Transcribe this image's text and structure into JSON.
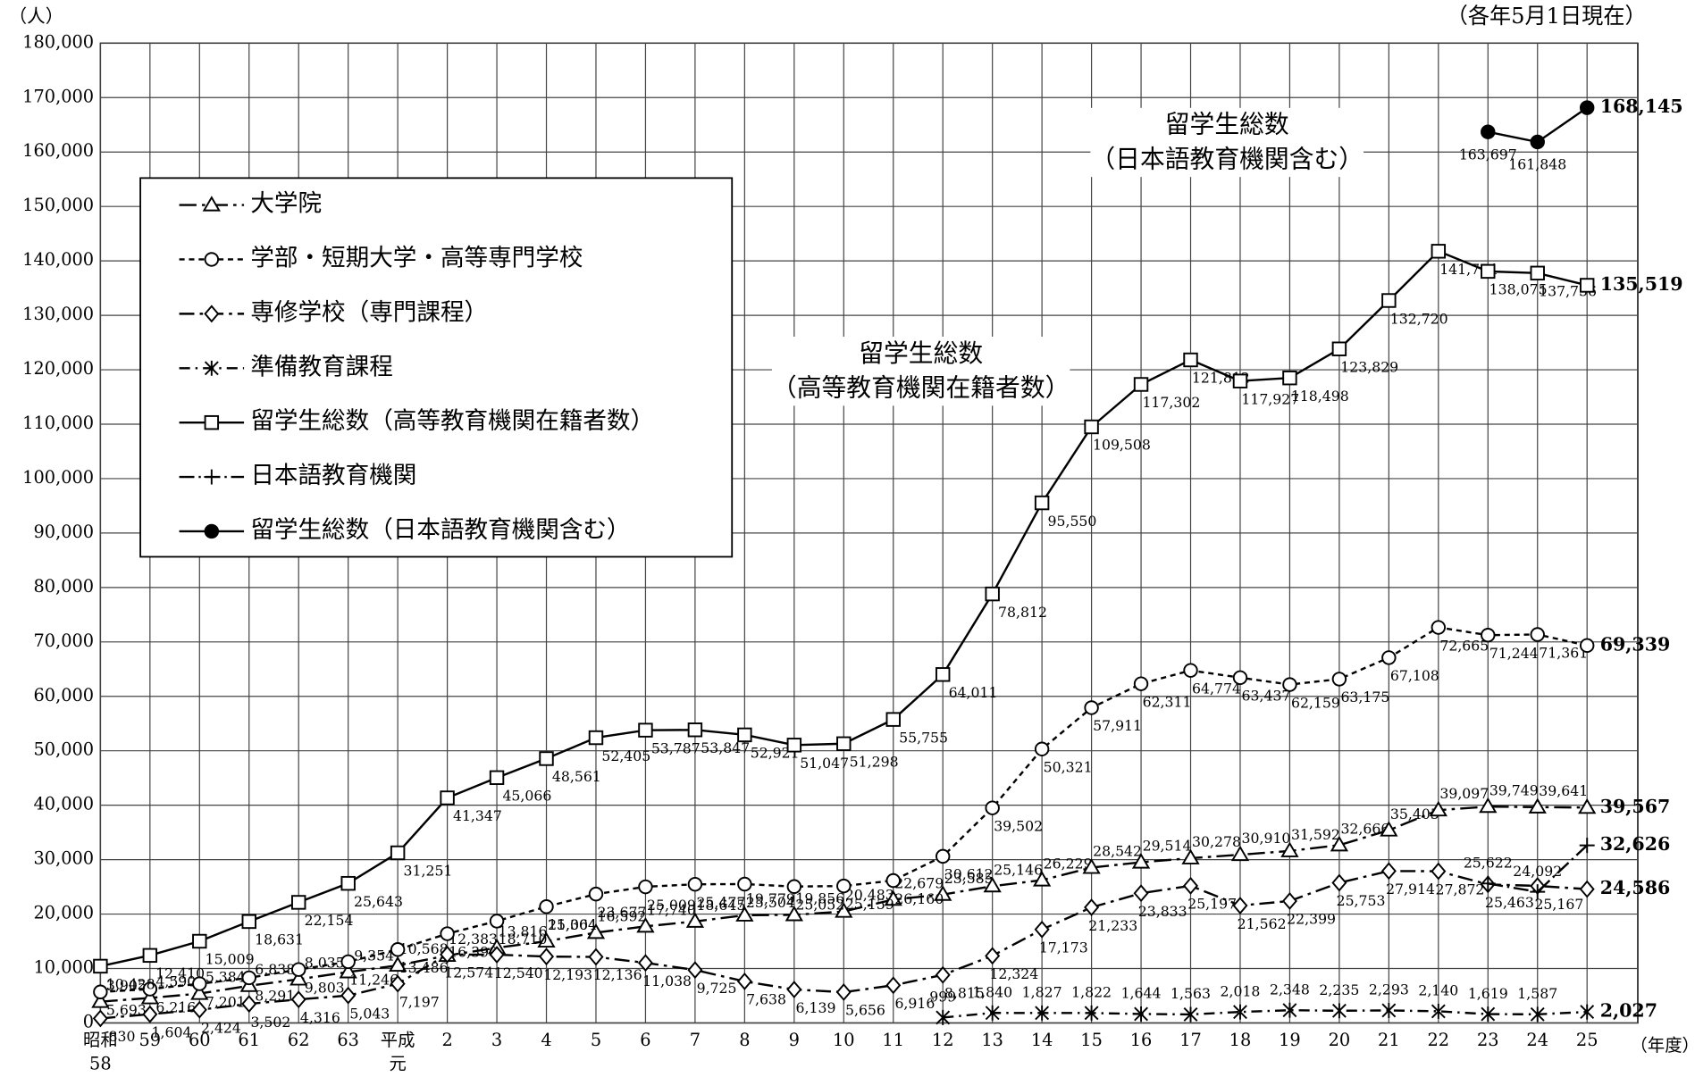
{
  "chart_data": {
    "type": "line",
    "subtitle": "（各年5月1日現在）",
    "ylabel": "（人）",
    "xlabel": "（年度）",
    "categories": [
      "昭和\n58",
      "59",
      "60",
      "61",
      "62",
      "63",
      "平成\n元",
      "2",
      "3",
      "4",
      "5",
      "6",
      "7",
      "8",
      "9",
      "10",
      "11",
      "12",
      "13",
      "14",
      "15",
      "16",
      "17",
      "18",
      "19",
      "20",
      "21",
      "22",
      "23",
      "24",
      "25"
    ],
    "ylim": [
      0,
      180000
    ],
    "yticks": [
      0,
      {
        "value": 10000,
        "label": "10,000"
      },
      {
        "value": 20000,
        "label": "20,000"
      },
      {
        "value": 30000,
        "label": "30,000"
      },
      {
        "value": 40000,
        "label": "40,000"
      },
      {
        "value": 50000,
        "label": "50,000"
      },
      {
        "value": 60000,
        "label": "60,000"
      },
      {
        "value": 70000,
        "label": "70,000"
      },
      {
        "value": 80000,
        "label": "80,000"
      },
      {
        "value": 90000,
        "label": "90,000"
      },
      {
        "value": 100000,
        "label": "100,000"
      },
      {
        "value": 110000,
        "label": "110,000"
      },
      {
        "value": 120000,
        "label": "120,000"
      },
      {
        "value": 130000,
        "label": "130,000"
      },
      {
        "value": 140000,
        "label": "140,000"
      },
      {
        "value": 150000,
        "label": "150,000"
      },
      {
        "value": 160000,
        "label": "160,000"
      },
      {
        "value": 170000,
        "label": "170,000"
      },
      {
        "value": 180000,
        "label": "180,000"
      }
    ],
    "grid": true,
    "legend": "upper left",
    "annotations": [
      "留学生総数\n（日本語教育機関含む）",
      "留学生総数\n（高等教育機関在籍者数）"
    ],
    "series": [
      {
        "name": "大学院",
        "color": "#000000",
        "marker": "triangle",
        "dash": "16,5,3,5",
        "values": [
          3905,
          4590,
          5384,
          6838,
          8035,
          9354,
          10568,
          12383,
          13816,
          15004,
          16592,
          17740,
          18645,
          19779,
          19856,
          20483,
          22679,
          23585,
          25146,
          26229,
          28542,
          29514,
          30278,
          30910,
          31592,
          32666,
          35405,
          39097,
          39749,
          39641,
          39567
        ],
        "value_labels": [
          "3,905",
          "4,590",
          "5,384",
          "6,838",
          "8,035",
          "9,354",
          "10,568",
          "12,383",
          "13,816",
          "15,004",
          "16,592",
          "17,740",
          "18,645",
          "19,779",
          "19,856",
          "20,483",
          "22,679",
          "23,585",
          "25,146",
          "26,229",
          "28,542",
          "29,514",
          "30,278",
          "30,910",
          "31,592",
          "32,666",
          "35,405",
          "39,097",
          "39,749",
          "39,641",
          "39,567"
        ]
      },
      {
        "name": "学部・短期大学・高等専門学校",
        "color": "#000000",
        "marker": "circle",
        "dash": "5,4",
        "values": [
          5693,
          6216,
          7201,
          8291,
          9803,
          11246,
          13486,
          16390,
          18710,
          21364,
          23677,
          25009,
          25477,
          25504,
          25052,
          25159,
          26160,
          30612,
          39502,
          50321,
          57911,
          62311,
          64774,
          63437,
          62159,
          63175,
          67108,
          72665,
          71244,
          71361,
          69339
        ],
        "value_labels": [
          "5,693",
          "6,216",
          "7,201",
          "8,291",
          "9,803",
          "11,246",
          "13,486",
          "16,390",
          "18,710",
          "21,364",
          "23,677",
          "25,009",
          "25,477",
          "25,504",
          "25,052",
          "25,159",
          "26,160",
          "30,612",
          "39,502",
          "50,321",
          "57,911",
          "62,311",
          "64,774",
          "63,437",
          "62,159",
          "63,175",
          "67,108",
          "72,665",
          "71,244",
          "71,361",
          "69,339"
        ]
      },
      {
        "name": "専修学校（専門課程）",
        "color": "#000000",
        "marker": "diamond",
        "dash": "14,5,3,5",
        "values": [
          830,
          1604,
          2424,
          3502,
          4316,
          5043,
          7197,
          12574,
          12540,
          12193,
          12136,
          11038,
          9725,
          7638,
          6139,
          5656,
          6916,
          8815,
          12324,
          17173,
          21233,
          23833,
          25197,
          21562,
          22399,
          25753,
          27914,
          27872,
          25463,
          25167,
          24586
        ],
        "value_labels": [
          "830",
          "1,604",
          "2,424",
          "3,502",
          "4,316",
          "5,043",
          "7,197",
          "12,574",
          "12,540",
          "12,193",
          "12,136",
          "11,038",
          "9,725",
          "7,638",
          "6,139",
          "5,656",
          "6,916",
          "8,815",
          "12,324",
          "17,173",
          "21,233",
          "23,833",
          "25,197",
          "21,562",
          "22,399",
          "25,753",
          "27,914",
          "27,872",
          "25,463",
          "25,167",
          "24,586"
        ]
      },
      {
        "name": "準備教育課程",
        "color": "#000000",
        "marker": "x",
        "dash": "10,5,2,5",
        "values": [
          null,
          null,
          null,
          null,
          null,
          null,
          null,
          null,
          null,
          null,
          null,
          null,
          null,
          null,
          null,
          null,
          null,
          999,
          1840,
          1827,
          1822,
          1644,
          1563,
          2018,
          2348,
          2235,
          2293,
          2140,
          1619,
          1587,
          2027
        ],
        "value_labels": [
          null,
          null,
          null,
          null,
          null,
          null,
          null,
          null,
          null,
          null,
          null,
          null,
          null,
          null,
          null,
          null,
          null,
          "999",
          "1,840",
          "1,827",
          "1,822",
          "1,644",
          "1,563",
          "2,018",
          "2,348",
          "2,235",
          "2,293",
          "2,140",
          "1,619",
          "1,587",
          "2,027"
        ]
      },
      {
        "name": "留学生総数（高等教育機関在籍者数）",
        "color": "#000000",
        "marker": "square",
        "dash": "none",
        "values": [
          10428,
          12410,
          15009,
          18631,
          22154,
          25643,
          31251,
          41347,
          45066,
          48561,
          52405,
          53787,
          53847,
          52921,
          51047,
          51298,
          55755,
          64011,
          78812,
          95550,
          109508,
          117302,
          121812,
          117927,
          118498,
          123829,
          132720,
          141774,
          138075,
          137756,
          135519
        ],
        "value_labels": [
          "10,428",
          "12,410",
          "15,009",
          "18,631",
          "22,154",
          "25,643",
          "31,251",
          "41,347",
          "45,066",
          "48,561",
          "52,405",
          "53,787",
          "53,847",
          "52,921",
          "51,047",
          "51,298",
          "55,755",
          "64,011",
          "78,812",
          "95,550",
          "109,508",
          "117,302",
          "121,812",
          "117,927",
          "118,498",
          "123,829",
          "132,720",
          "141,774",
          "138,075",
          "137,756",
          "135,519"
        ]
      },
      {
        "name": "日本語教育機関",
        "color": "#000000",
        "marker": "plus",
        "dash": "14,4,2,4",
        "values": [
          null,
          null,
          null,
          null,
          null,
          null,
          null,
          null,
          null,
          null,
          null,
          null,
          null,
          null,
          null,
          null,
          null,
          null,
          null,
          null,
          null,
          null,
          null,
          null,
          null,
          null,
          null,
          null,
          25622,
          24092,
          32626
        ],
        "value_labels": [
          null,
          null,
          null,
          null,
          null,
          null,
          null,
          null,
          null,
          null,
          null,
          null,
          null,
          null,
          null,
          null,
          null,
          null,
          null,
          null,
          null,
          null,
          null,
          null,
          null,
          null,
          null,
          null,
          "25,622",
          "24,092",
          "32,626"
        ]
      },
      {
        "name": "留学生総数（日本語教育機関含む）",
        "color": "#000000",
        "marker": "dot",
        "dash": "none",
        "values": [
          null,
          null,
          null,
          null,
          null,
          null,
          null,
          null,
          null,
          null,
          null,
          null,
          null,
          null,
          null,
          null,
          null,
          null,
          null,
          null,
          null,
          null,
          null,
          null,
          null,
          null,
          null,
          null,
          163697,
          161848,
          168145
        ],
        "value_labels": [
          null,
          null,
          null,
          null,
          null,
          null,
          null,
          null,
          null,
          null,
          null,
          null,
          null,
          null,
          null,
          null,
          null,
          null,
          null,
          null,
          null,
          null,
          null,
          null,
          null,
          null,
          null,
          null,
          "163,697",
          "161,848",
          "168,145"
        ]
      }
    ]
  }
}
